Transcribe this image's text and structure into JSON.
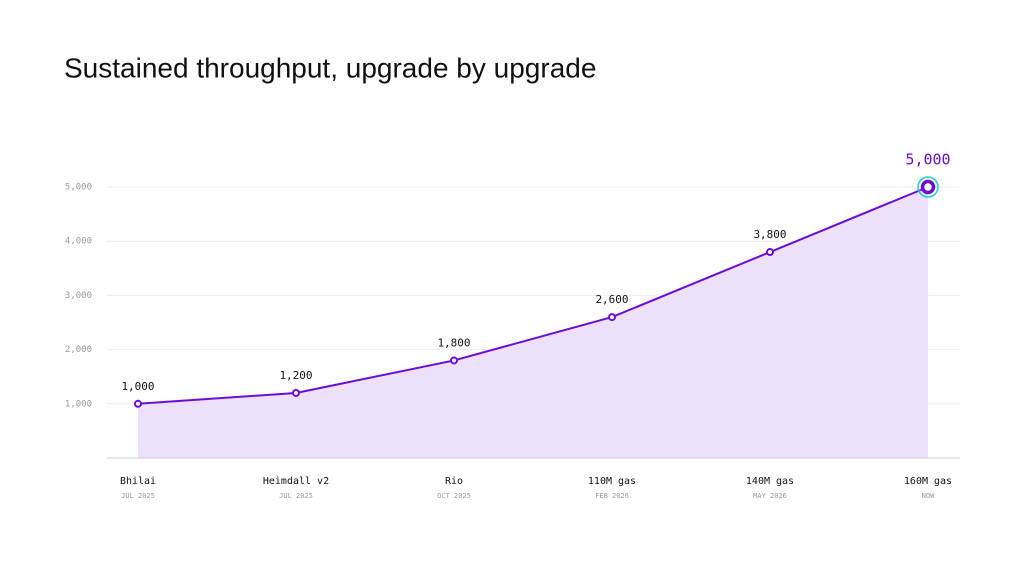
{
  "chart_data": {
    "type": "area",
    "title": "Sustained throughput, upgrade by upgrade",
    "categories": [
      "Bhilai",
      "Heimdall v2",
      "Rio",
      "110M gas",
      "140M gas",
      "160M gas"
    ],
    "sublabels": [
      "JUL 2025",
      "JUL 2025",
      "OCT 2025",
      "FEB 2026",
      "MAY 2026",
      "NOW"
    ],
    "values": [
      1000,
      1200,
      1800,
      2600,
      3800,
      5000
    ],
    "value_labels": [
      "1,000",
      "1,200",
      "1,800",
      "2,600",
      "3,800",
      "5,000"
    ],
    "color": "#6a0dd6",
    "fill": "#ede0fb",
    "highlight": "#1ec8e6",
    "ylim": [
      0,
      5000
    ],
    "yticks": [
      {
        "value": 1000,
        "label": "1,000"
      },
      {
        "value": 2000,
        "label": "2,000"
      },
      {
        "value": 3000,
        "label": "3,000"
      },
      {
        "value": 4000,
        "label": "4,000"
      },
      {
        "value": 5000,
        "label": "5,000"
      }
    ],
    "grid": true
  }
}
